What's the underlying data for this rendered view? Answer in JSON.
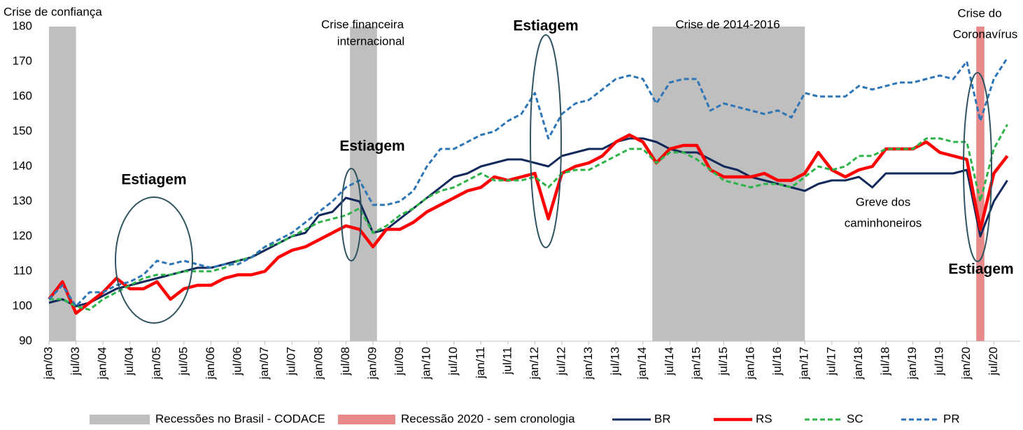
{
  "chart_data": {
    "type": "line",
    "categories": [
      "jan/03",
      null,
      "jul/03",
      null,
      "jan/04",
      null,
      "jul/04",
      null,
      "jan/05",
      null,
      "jul/05",
      null,
      "jan/06",
      null,
      "jul/06",
      null,
      "jan/07",
      null,
      "jul/07",
      null,
      "jan/08",
      null,
      "jul/08",
      null,
      "jan/09",
      null,
      "jul/09",
      null,
      "jan/10",
      null,
      "jul/10",
      null,
      "jan/11",
      null,
      "jul/11",
      null,
      "jan/12",
      null,
      "jul/12",
      null,
      "jan/13",
      null,
      "jul/13",
      null,
      "jan/14",
      null,
      "jul/14",
      null,
      "jan/15",
      null,
      "jul/15",
      null,
      "jan/16",
      null,
      "jul/16",
      null,
      "jan/17",
      null,
      "jul/17",
      null,
      "jan/18",
      null,
      "jul/18",
      null,
      "jan/19",
      null,
      "jul/19",
      null,
      "jan/20",
      null,
      "jul/20",
      null
    ],
    "series": [
      {
        "name": "BR",
        "color": "#10285a",
        "dashed": false,
        "line_width": 3,
        "values": [
          101,
          102,
          100,
          101,
          103,
          105,
          106,
          107,
          108,
          109,
          110,
          111,
          111,
          112,
          113,
          114,
          116,
          118,
          120,
          121,
          126,
          127,
          131,
          130,
          121,
          122,
          125,
          128,
          131,
          134,
          137,
          138,
          140,
          141,
          142,
          142,
          141,
          140,
          143,
          144,
          145,
          145,
          147,
          148,
          148,
          147,
          145,
          144,
          144,
          142,
          140,
          139,
          137,
          136,
          135,
          134,
          133,
          135,
          136,
          136,
          137,
          134,
          138,
          138,
          138,
          138,
          138,
          138,
          139,
          120,
          130,
          136
        ]
      },
      {
        "name": "RS",
        "color": "#ff0000",
        "dashed": false,
        "line_width": 4.5,
        "values": [
          102,
          107,
          98,
          101,
          104,
          108,
          105,
          105,
          107,
          102,
          105,
          106,
          106,
          108,
          109,
          109,
          110,
          114,
          116,
          117,
          119,
          121,
          123,
          122,
          117,
          122,
          122,
          124,
          127,
          129,
          131,
          133,
          134,
          137,
          136,
          137,
          138,
          125,
          138,
          140,
          141,
          143,
          147,
          149,
          147,
          141,
          145,
          146,
          146,
          139,
          137,
          137,
          137,
          138,
          136,
          136,
          138,
          144,
          139,
          137,
          139,
          140,
          145,
          145,
          145,
          147,
          144,
          143,
          142,
          122,
          138,
          143
        ]
      },
      {
        "name": "SC",
        "color": "#2db34a",
        "dashed": true,
        "line_width": 3,
        "values": [
          102,
          102,
          100,
          99,
          102,
          104,
          106,
          108,
          109,
          109,
          110,
          110,
          110,
          111,
          113,
          114,
          117,
          118,
          120,
          122,
          124,
          125,
          126,
          128,
          121,
          123,
          126,
          128,
          131,
          133,
          134,
          136,
          138,
          136,
          136,
          136,
          137,
          134,
          138,
          139,
          139,
          141,
          143,
          145,
          145,
          141,
          144,
          144,
          142,
          139,
          136,
          135,
          134,
          135,
          135,
          134,
          137,
          140,
          139,
          140,
          143,
          143,
          145,
          145,
          145,
          148,
          148,
          147,
          147,
          130,
          145,
          152
        ]
      },
      {
        "name": "PR",
        "color": "#2e75b6",
        "dashed": true,
        "line_width": 3,
        "values": [
          102,
          106,
          100,
          104,
          104,
          106,
          107,
          109,
          113,
          112,
          113,
          112,
          111,
          112,
          112,
          114,
          117,
          119,
          121,
          124,
          127,
          130,
          134,
          136,
          129,
          129,
          130,
          133,
          140,
          145,
          145,
          147,
          149,
          150,
          153,
          155,
          161,
          148,
          155,
          158,
          159,
          162,
          165,
          166,
          165,
          158,
          164,
          165,
          165,
          156,
          158,
          157,
          156,
          155,
          156,
          154,
          161,
          160,
          160,
          160,
          163,
          162,
          163,
          164,
          164,
          165,
          166,
          165,
          170,
          153,
          165,
          171
        ]
      }
    ],
    "bands": [
      {
        "name": "Recessões no Brasil - CODACE",
        "color": "#bfbfbf",
        "ranges": [
          [
            0,
            2
          ],
          [
            22.3,
            24.3
          ],
          [
            44.7,
            56
          ]
        ]
      },
      {
        "name": "Recessão 2020 - sem cronologia",
        "color": "#e88a8a",
        "ranges": [
          [
            68.7,
            69.3
          ]
        ]
      }
    ],
    "ylim": [
      90,
      180
    ],
    "yticks": [
      90,
      100,
      110,
      120,
      130,
      140,
      150,
      160,
      170,
      180
    ],
    "grid": false,
    "legend": "bottom",
    "annotations": [
      "Crise de confiança",
      "Crise financeira",
      "internacional",
      "Crise de 2014-2016",
      "Crise do",
      "Coronavírus",
      "Estiagem",
      "Estiagem",
      "Estiagem",
      "Estiagem",
      "Greve dos",
      "caminhoneiros"
    ]
  }
}
